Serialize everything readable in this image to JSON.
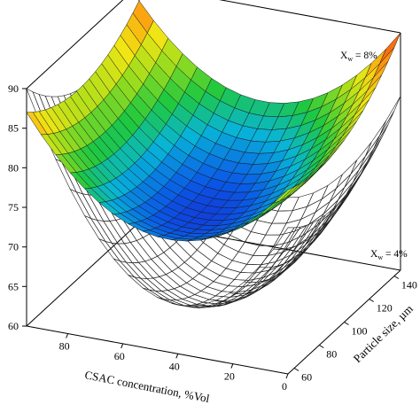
{
  "chart_data": {
    "type": "surface3d",
    "xlabel": "CSAC concentration, %Vol",
    "ylabel": "Particle size, µm",
    "zlabel": "",
    "x_ticks": [
      "0",
      "20",
      "40",
      "60",
      "80"
    ],
    "y_ticks": [
      "60",
      "80",
      "100",
      "120",
      "140"
    ],
    "z_ticks": [
      "60",
      "65",
      "70",
      "75",
      "80",
      "85",
      "90"
    ],
    "xlim": [
      0,
      95
    ],
    "ylim": [
      55,
      145
    ],
    "zlim": [
      60,
      90
    ],
    "grid": false,
    "legend": "none",
    "series": [
      {
        "name_main": "X",
        "name_sub": "w",
        "name_rest": " = 8%",
        "style": "colored-surface",
        "model": {
          "z_min": 71.5,
          "x_min": 48,
          "y_min": 75,
          "a": 0.0048,
          "b": 0.0018
        },
        "corners": [
          {
            "x": 95,
            "y": 55,
            "z": 87
          },
          {
            "x": 95,
            "y": 145,
            "z": 88
          },
          {
            "x": 0,
            "y": 145,
            "z": 90
          }
        ]
      },
      {
        "name_main": "X",
        "name_sub": "w",
        "name_rest": " = 4%",
        "style": "wireframe",
        "model": {
          "z_min": 60,
          "x_min": 45,
          "y_min": 90,
          "a": 0.0078,
          "b": 0.0022
        },
        "corners": [
          {
            "x": 95,
            "y": 55,
            "z": 90
          },
          {
            "x": 0,
            "y": 145,
            "z": 82
          }
        ]
      }
    ],
    "colorscale": [
      "#1a10c8",
      "#0a5ae6",
      "#08b4d8",
      "#1ec840",
      "#96dc1e",
      "#f0e614",
      "#ff9010",
      "#f03010"
    ]
  }
}
